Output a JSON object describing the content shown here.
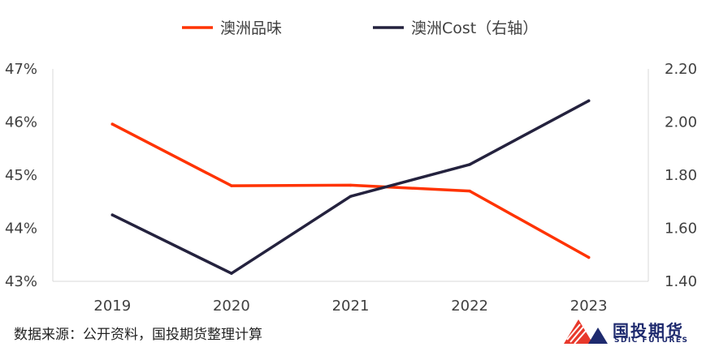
{
  "chart_data": {
    "type": "line",
    "categories": [
      "2019",
      "2020",
      "2021",
      "2022",
      "2023"
    ],
    "series": [
      {
        "name": "澳洲品味",
        "axis": "left",
        "color": "#FF3300",
        "values": [
          45.96,
          44.8,
          44.81,
          44.7,
          43.45
        ]
      },
      {
        "name": "澳洲Cost（右轴）",
        "axis": "right",
        "color": "#24223E",
        "values": [
          1.65,
          1.43,
          1.72,
          1.84,
          2.08
        ]
      }
    ],
    "y_left": {
      "ylim": [
        43,
        47
      ],
      "ticks": [
        "43%",
        "44%",
        "45%",
        "46%",
        "47%"
      ]
    },
    "y_right": {
      "ylim": [
        1.4,
        2.2
      ],
      "ticks": [
        "1.40",
        "1.60",
        "1.80",
        "2.00",
        "2.20"
      ]
    },
    "grid": false,
    "legend_position": "top"
  },
  "footer": {
    "source": "数据来源：公开资料，国投期货整理计算",
    "logo_cn": "国投期货",
    "logo_en": "SDIC FUTURES"
  }
}
